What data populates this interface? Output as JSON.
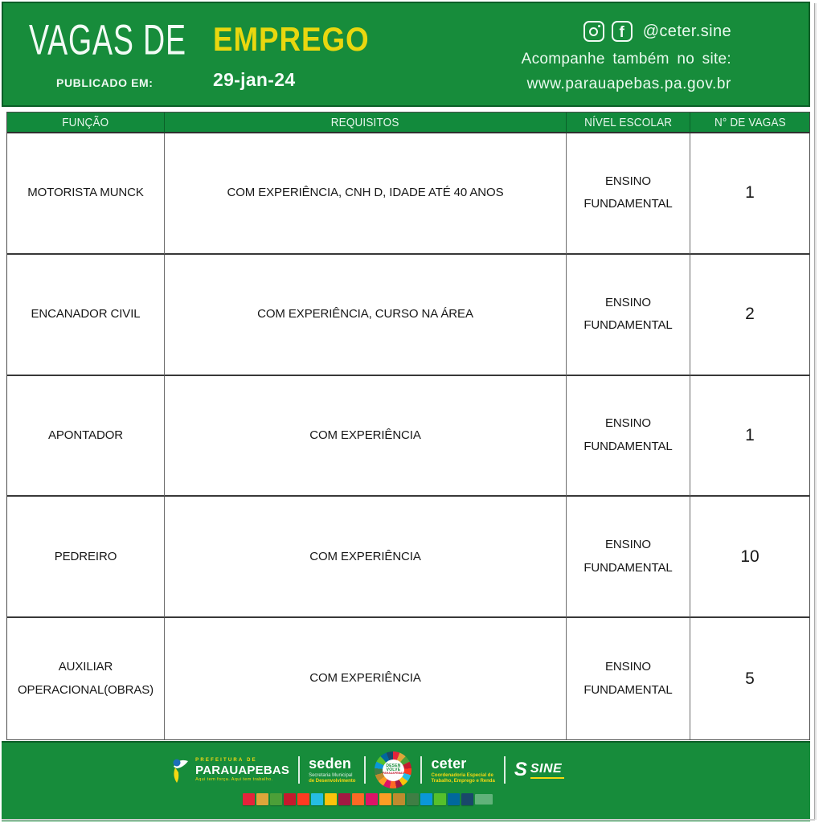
{
  "header": {
    "title_left": "VAGAS DE",
    "title_right": "EMPREGO",
    "published_label": "PUBLICADO EM:",
    "published_date": "29-jan-24",
    "social_icons": [
      "instagram-icon",
      "facebook-icon"
    ],
    "facebook_glyph": "f",
    "social_handle": "@ceter.sine",
    "site_line1": "Acompanhe também no site:",
    "site_url": "www.parauapebas.pa.gov.br"
  },
  "table": {
    "columns": [
      "FUNÇÃO",
      "REQUISITOS",
      "NÍVEL ESCOLAR",
      "N° DE VAGAS"
    ],
    "rows": [
      {
        "funcao": "MOTORISTA MUNCK",
        "requisitos": "COM EXPERIÊNCIA, CNH D, IDADE ATÉ 40 ANOS",
        "nivel": "ENSINO FUNDAMENTAL",
        "vagas": "1"
      },
      {
        "funcao": "ENCANADOR CIVIL",
        "requisitos": "COM EXPERIÊNCIA, CURSO NA ÁREA",
        "nivel": "ENSINO FUNDAMENTAL",
        "vagas": "2"
      },
      {
        "funcao": "APONTADOR",
        "requisitos": "COM EXPERIÊNCIA",
        "nivel": "ENSINO FUNDAMENTAL",
        "vagas": "1"
      },
      {
        "funcao": "PEDREIRO",
        "requisitos": "COM EXPERIÊNCIA",
        "nivel": "ENSINO FUNDAMENTAL",
        "vagas": "10"
      },
      {
        "funcao": "AUXILIAR OPERACIONAL(OBRAS)",
        "requisitos": "COM EXPERIÊNCIA",
        "nivel": "ENSINO FUNDAMENTAL",
        "vagas": "5"
      }
    ]
  },
  "footer": {
    "prefeitura": {
      "line1": "PREFEITURA DE",
      "line2": "PARAUAPEBAS",
      "tagline": "Aqui tem força. Aqui tem trabalho."
    },
    "seden": {
      "name": "seden",
      "sub1": "Secretaria Municipal",
      "sub2": "de Desenvolvimento"
    },
    "desenvolve": {
      "line1": "DESEN",
      "line2": "VOLVE",
      "line3": "PARAUAPEBAS"
    },
    "ceter": {
      "name": "ceter",
      "sub1": "Coordenadoria Especial de",
      "sub2": "Trabalho, Emprego e Renda"
    },
    "sine": {
      "s_glyph": "S",
      "name": "SINE"
    },
    "sdg_colors": [
      "#E5243B",
      "#DDA63A",
      "#4C9F38",
      "#C5192D",
      "#FF3A21",
      "#26BDE2",
      "#FCC30B",
      "#A21942",
      "#FD6925",
      "#DD1367",
      "#FD9D24",
      "#BF8B2E",
      "#3F7E44",
      "#0A97D9",
      "#56C02B",
      "#00689D",
      "#19486A"
    ],
    "sdg_end_tile_color": "rgba(235,248,240,0.35)"
  },
  "colors": {
    "green": "#178c3b",
    "dark_green": "#0b5e27",
    "header_row_green": "#128a3c",
    "accent_yellow": "#e9d70f",
    "logo_yellow": "#f6d912",
    "table_text": "#171717"
  }
}
